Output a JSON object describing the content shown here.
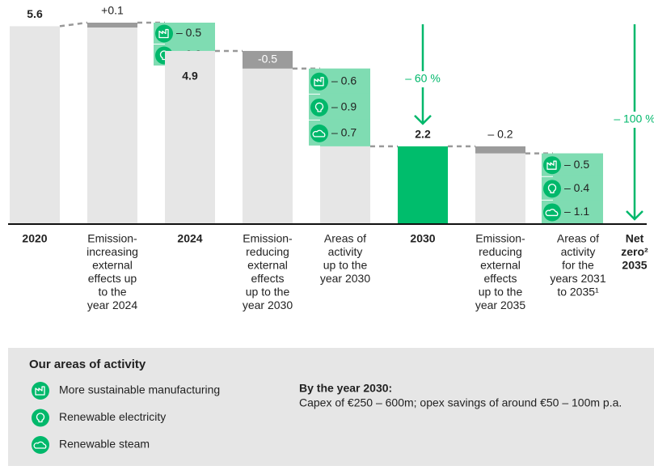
{
  "chart_data": {
    "type": "waterfall",
    "categories": [
      [
        "2020"
      ],
      [
        "Emission-",
        "increasing",
        "external",
        "effects up",
        "to the",
        "year 2024"
      ],
      [
        "2024"
      ],
      [
        "Emission-",
        "reducing",
        "external",
        "effects",
        "up to the",
        "year 2030"
      ],
      [
        "Areas of",
        "activity",
        "up to the",
        "year 2030"
      ],
      [
        "2030"
      ],
      [
        "Emission-",
        "reducing",
        "external",
        "effects",
        "up to the",
        "year 2035"
      ],
      [
        "Areas of",
        "activity",
        "for the",
        "years 2031",
        "to 2035¹"
      ],
      [
        "Net",
        "zero²",
        "2035"
      ]
    ],
    "steps": [
      {
        "kind": "total",
        "values": [
          5.6
        ],
        "value_labels": [
          "5.6"
        ],
        "color": "#e6e6e6"
      },
      {
        "kind": "delta",
        "values": [
          0.1
        ],
        "value_labels": [
          "+0.1"
        ],
        "color": "#9b9b9b"
      },
      {
        "kind": "total",
        "values": [
          4.9
        ],
        "value_labels": [
          "4.9"
        ],
        "color": "#e6e6e6",
        "activity": {
          "values": [
            -0.5,
            -0.3
          ],
          "value_labels": [
            "– 0.5",
            "– 0.3"
          ],
          "color": "#7fdcb2"
        }
      },
      {
        "kind": "delta",
        "values": [
          -0.5
        ],
        "value_labels": [
          "-0.5"
        ],
        "color": "#9b9b9b"
      },
      {
        "kind": "activity",
        "values": [
          -0.6,
          -0.9,
          -0.7
        ],
        "value_labels": [
          "– 0.6",
          "– 0.9",
          "– 0.7"
        ],
        "color": "#7fdcb2"
      },
      {
        "kind": "total",
        "values": [
          2.2
        ],
        "value_labels": [
          "2.2"
        ],
        "color": "#00bd6c"
      },
      {
        "kind": "delta",
        "values": [
          -0.2
        ],
        "value_labels": [
          "– 0.2"
        ],
        "color": "#9b9b9b"
      },
      {
        "kind": "activity",
        "values": [
          -0.5,
          -0.4,
          -1.1
        ],
        "value_labels": [
          "– 0.5",
          "– 0.4",
          "– 1.1"
        ],
        "color": "#7fdcb2"
      },
      {
        "kind": "total",
        "values": [
          0
        ],
        "color": "#e6e6e6"
      }
    ],
    "annotations": [
      "– 60 %",
      "– 100 %"
    ],
    "annotation_color": "#00b86b"
  },
  "legend": {
    "title": "Our areas of activity",
    "items": [
      "More sustainable manufacturing",
      "Renewable electricity",
      "Renewable steam"
    ],
    "note_title": "By the year 2030:",
    "note": "Capex of €250 – 600m; opex savings of around €50 – 100m p.a."
  }
}
